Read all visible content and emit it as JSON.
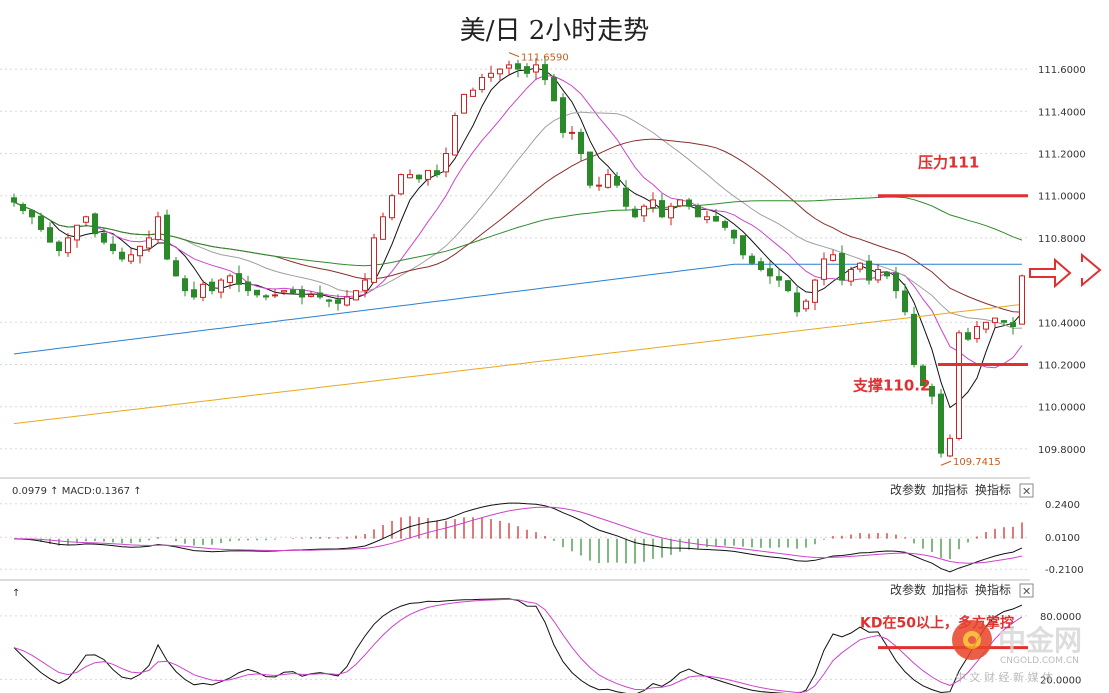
{
  "title": "美/日 2小时走势",
  "chart_data": [
    {
      "type": "candlestick",
      "panel": "price",
      "yticks": [
        "111.6000",
        "111.4000",
        "111.2000",
        "111.0000",
        "110.8000",
        "110.4000",
        "110.2000",
        "110.0000",
        "109.8000"
      ],
      "ylim": [
        109.7,
        111.7
      ],
      "grid": true,
      "high_label": "111.6590",
      "low_label": "109.7415",
      "annotations": [
        {
          "text": "压力111",
          "y": 111.0
        },
        {
          "text": "支撑110.2",
          "y": 110.2
        }
      ],
      "close": [
        110.97,
        110.93,
        110.9,
        110.84,
        110.78,
        110.74,
        110.8,
        110.86,
        110.9,
        110.82,
        110.78,
        110.74,
        110.7,
        110.72,
        110.76,
        110.8,
        110.9,
        110.7,
        110.62,
        110.55,
        110.52,
        110.58,
        110.55,
        110.6,
        110.62,
        110.58,
        110.55,
        110.53,
        110.52,
        110.53,
        110.55,
        110.54,
        110.52,
        110.53,
        110.52,
        110.5,
        110.49,
        110.52,
        110.55,
        110.6,
        110.8,
        110.9,
        111.0,
        111.1,
        111.1,
        111.08,
        111.12,
        111.1,
        111.2,
        111.38,
        111.48,
        111.5,
        111.56,
        111.58,
        111.6,
        111.62,
        111.6,
        111.58,
        111.62,
        111.55,
        111.45,
        111.3,
        111.3,
        111.2,
        111.05,
        111.05,
        111.1,
        111.05,
        110.95,
        110.9,
        110.95,
        110.98,
        110.9,
        110.95,
        110.98,
        110.95,
        110.9,
        110.9,
        110.88,
        110.85,
        110.8,
        110.72,
        110.68,
        110.65,
        110.62,
        110.6,
        110.55,
        110.45,
        110.5,
        110.6,
        110.7,
        110.72,
        110.6,
        110.65,
        110.68,
        110.6,
        110.65,
        110.62,
        110.55,
        110.45,
        110.2,
        110.1,
        110.05,
        109.78,
        109.85,
        110.35,
        110.32,
        110.38,
        110.4,
        110.42,
        110.4,
        110.38,
        110.62
      ]
    },
    {
      "type": "line",
      "panel": "macd",
      "header": "0.0979 ↑ MACD:0.1367 ↑",
      "yticks": [
        "0.2400",
        "0.0100",
        "-0.2100"
      ],
      "ylim": [
        -0.25,
        0.28
      ]
    },
    {
      "type": "line",
      "panel": "kd",
      "header": "↑",
      "yticks": [
        "80.0000",
        "20.0000"
      ],
      "ylim": [
        10,
        95
      ],
      "annotations": [
        {
          "text": "KD在50以上，多方掌控",
          "y": 50
        }
      ]
    }
  ],
  "toolbar": {
    "change_params": "改参数",
    "add_indicator": "加指标",
    "switch_indicator": "换指标",
    "close": "✕"
  },
  "colors": {
    "up": "#cc2222",
    "down": "#2a8a2a",
    "ma5": "#111111",
    "ma10": "#cc44cc",
    "ma20": "#a0a0a0",
    "ma30": "#8b2e2e",
    "ma60": "#2e8b2e",
    "ma120": "#2a7fd0",
    "ma250": "#e8a820",
    "annotation": "#e03030"
  },
  "watermark": {
    "brand": "中金网",
    "domain": "CNGOLD.COM.CN",
    "slogan": "中 文 财 经 新 媒 体"
  }
}
